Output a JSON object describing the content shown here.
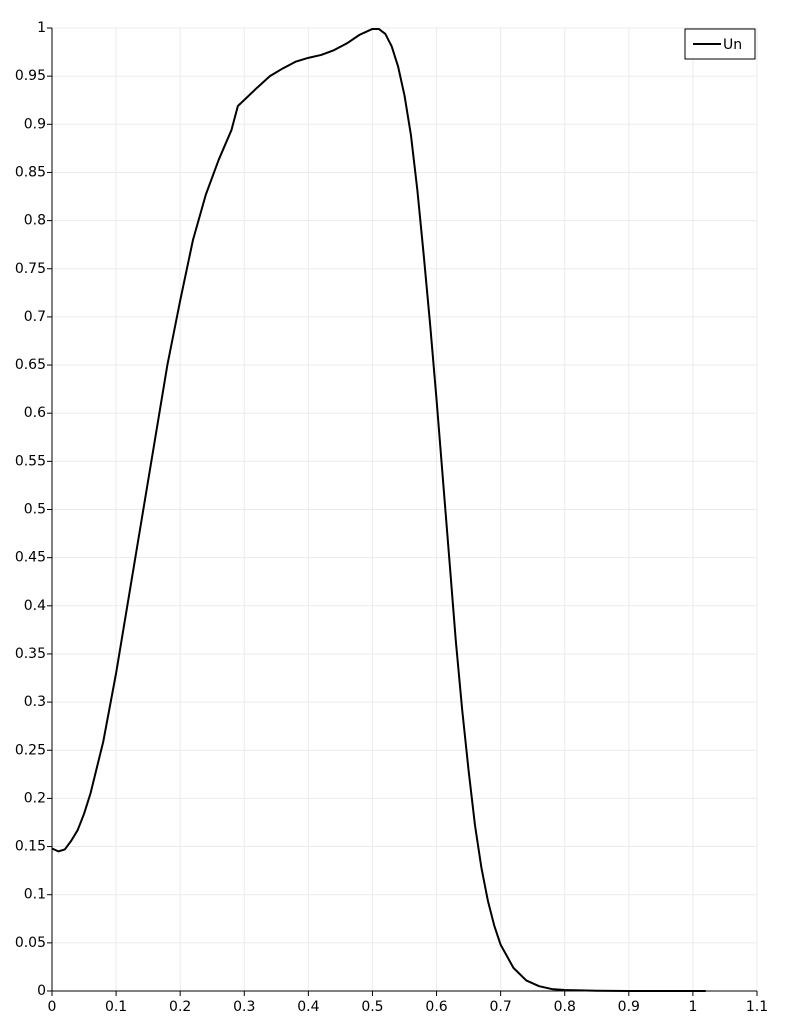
{
  "chart_data": {
    "type": "line",
    "x": [
      0,
      0.01,
      0.02,
      0.03,
      0.04,
      0.05,
      0.06,
      0.08,
      0.1,
      0.12,
      0.14,
      0.16,
      0.18,
      0.2,
      0.22,
      0.24,
      0.26,
      0.28,
      0.29,
      0.32,
      0.34,
      0.36,
      0.38,
      0.4,
      0.42,
      0.44,
      0.46,
      0.48,
      0.5,
      0.51,
      0.52,
      0.53,
      0.54,
      0.55,
      0.56,
      0.57,
      0.58,
      0.59,
      0.6,
      0.61,
      0.62,
      0.63,
      0.64,
      0.65,
      0.66,
      0.67,
      0.68,
      0.69,
      0.7,
      0.72,
      0.74,
      0.76,
      0.78,
      0.8,
      0.85,
      0.9,
      1.02
    ],
    "series": [
      {
        "name": "Un",
        "color": "#000000",
        "values": [
          0.148,
          0.145,
          0.147,
          0.156,
          0.167,
          0.184,
          0.205,
          0.259,
          0.33,
          0.41,
          0.49,
          0.57,
          0.65,
          0.717,
          0.78,
          0.827,
          0.863,
          0.894,
          0.919,
          0.938,
          0.95,
          0.958,
          0.965,
          0.969,
          0.972,
          0.977,
          0.984,
          0.993,
          0.999,
          0.999,
          0.994,
          0.981,
          0.96,
          0.93,
          0.889,
          0.832,
          0.764,
          0.692,
          0.614,
          0.531,
          0.448,
          0.364,
          0.292,
          0.229,
          0.172,
          0.128,
          0.094,
          0.068,
          0.048,
          0.024,
          0.011,
          0.005,
          0.002,
          0.001,
          0.0003,
          0,
          0
        ]
      }
    ],
    "xlim": [
      0,
      1.1
    ],
    "ylim": [
      0,
      1
    ],
    "xticks": [
      0,
      0.1,
      0.2,
      0.3,
      0.4,
      0.5,
      0.6,
      0.7,
      0.8,
      0.9,
      1,
      1.1
    ],
    "yticks": [
      0,
      0.05,
      0.1,
      0.15,
      0.2,
      0.25,
      0.3,
      0.35,
      0.4,
      0.45,
      0.5,
      0.55,
      0.6,
      0.65,
      0.7,
      0.75,
      0.8,
      0.85,
      0.9,
      0.95,
      1
    ],
    "grid": true,
    "legend": "top-right"
  }
}
